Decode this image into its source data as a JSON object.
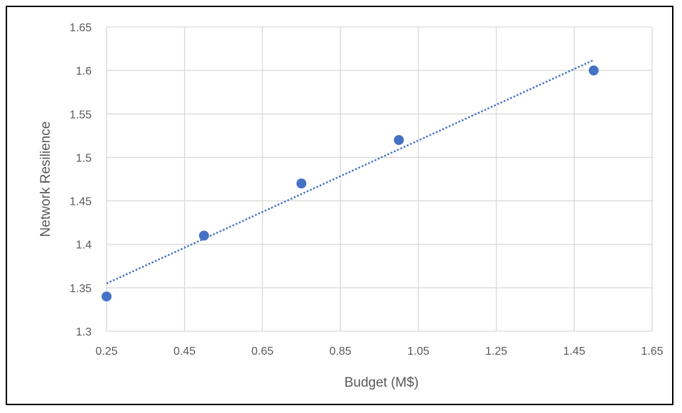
{
  "chart_data": {
    "type": "scatter",
    "title": "",
    "xlabel": "Budget (M$)",
    "ylabel": "Network Resilience",
    "xlim": [
      0.25,
      1.65
    ],
    "ylim": [
      1.3,
      1.65
    ],
    "xticks": [
      0.25,
      0.45,
      0.65,
      0.85,
      1.05,
      1.25,
      1.45,
      1.65
    ],
    "yticks": [
      1.3,
      1.35,
      1.4,
      1.45,
      1.5,
      1.55,
      1.6,
      1.65
    ],
    "xtick_labels": [
      "0.25",
      "0.45",
      "0.65",
      "0.85",
      "1.05",
      "1.25",
      "1.45",
      "1.65"
    ],
    "ytick_labels": [
      "1.3",
      "1.35",
      "1.4",
      "1.45",
      "1.5",
      "1.55",
      "1.6",
      "1.65"
    ],
    "grid": true,
    "legend": "none",
    "series": [
      {
        "x": [
          0.25,
          0.5,
          0.75,
          1.0,
          1.5
        ],
        "y": [
          1.34,
          1.41,
          1.47,
          1.52,
          1.6
        ],
        "color": "#4472C4"
      }
    ],
    "trendline": {
      "type": "linear",
      "style": "dotted",
      "color": "#4472C4",
      "x": [
        0.25,
        1.5
      ],
      "y": [
        1.355,
        1.612
      ]
    }
  }
}
